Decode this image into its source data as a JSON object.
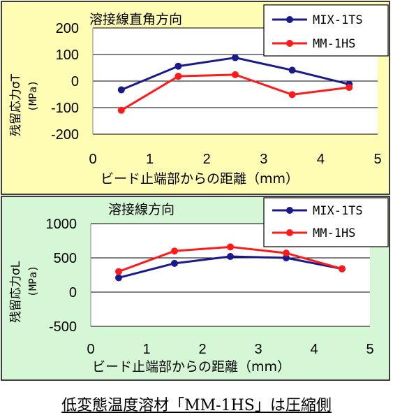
{
  "caption": "低変態温度溶材「MM-1HS」は圧縮側",
  "colors": {
    "panel1_bg": "#fffcb4",
    "panel2_bg": "#d6f7d6",
    "plot_bg": "#ffffff",
    "series_mix": "#1a1a8c",
    "series_mm": "#ff1a1a"
  },
  "chart_data": [
    {
      "type": "line",
      "title": "溶接線直角方向",
      "xlabel": "ビード止端部からの距離（mm）",
      "ylabel": "残留応力σT",
      "yunit": "(MPa)",
      "xlim": [
        0,
        5
      ],
      "ylim": [
        -200,
        200
      ],
      "xticks": [
        "0",
        "1",
        "2",
        "3",
        "4",
        "5"
      ],
      "yticks": [
        "200",
        "100",
        "0",
        "-100",
        "-200"
      ],
      "grid": "horizontal",
      "legend_position": "top-right",
      "x": [
        0.5,
        1.5,
        2.5,
        3.5,
        4.5
      ],
      "series": [
        {
          "name": "MIX-1TS",
          "values": [
            -33,
            56,
            88,
            41,
            -12
          ]
        },
        {
          "name": "MM-1HS",
          "values": [
            -110,
            18,
            24,
            -51,
            -24
          ]
        }
      ]
    },
    {
      "type": "line",
      "title": "溶接線方向",
      "xlabel": "ビード止端部からの距離（mm）",
      "ylabel": "残留応力σL",
      "yunit": "(MPa)",
      "xlim": [
        0,
        5
      ],
      "ylim": [
        -500,
        1000
      ],
      "xticks": [
        "0",
        "1",
        "2",
        "3",
        "4",
        "5"
      ],
      "yticks": [
        "1000",
        "500",
        "0",
        "-500"
      ],
      "grid": "horizontal",
      "legend_position": "top-right",
      "x": [
        0.5,
        1.5,
        2.5,
        3.5,
        4.5
      ],
      "series": [
        {
          "name": "MIX-1TS",
          "values": [
            210,
            420,
            520,
            500,
            340
          ]
        },
        {
          "name": "MM-1HS",
          "values": [
            300,
            600,
            660,
            570,
            340
          ]
        }
      ]
    }
  ]
}
